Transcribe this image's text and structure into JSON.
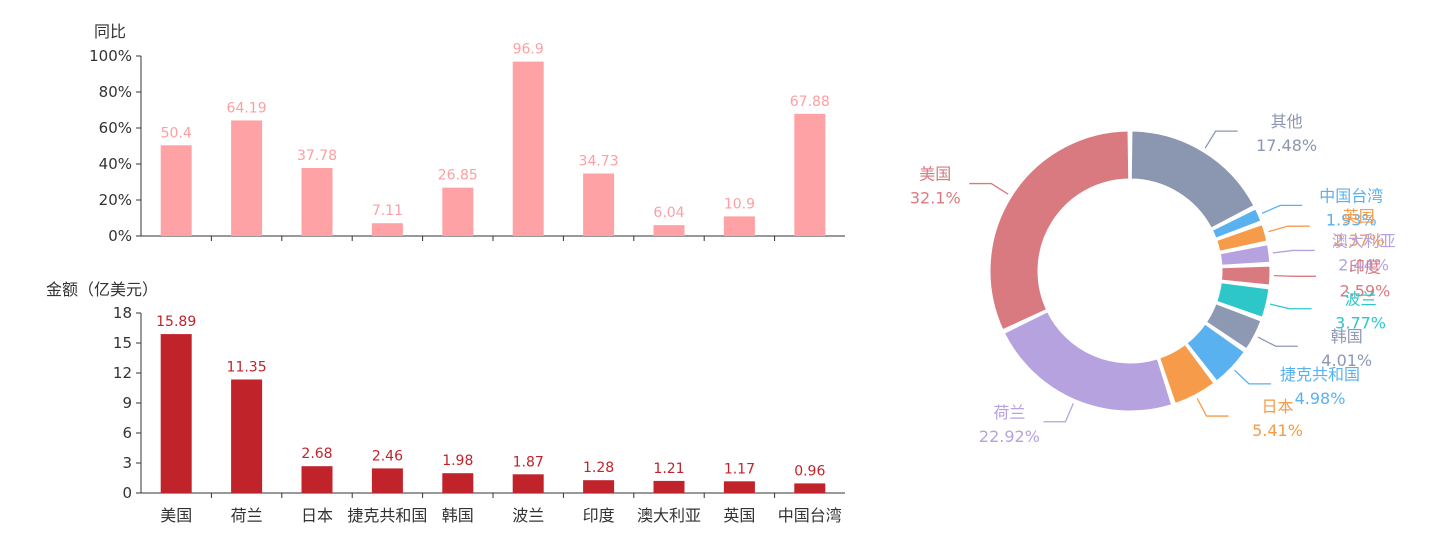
{
  "chart_data": [
    {
      "type": "bar",
      "ylabel": "同比",
      "ylim": [
        0,
        100
      ],
      "yticks": [
        "0%",
        "20%",
        "40%",
        "60%",
        "80%",
        "100%"
      ],
      "categories": [
        "美国",
        "荷兰",
        "日本",
        "捷克共和国",
        "韩国",
        "波兰",
        "印度",
        "澳大利亚",
        "英国",
        "中国台湾"
      ],
      "values": [
        50.4,
        64.19,
        37.78,
        7.11,
        26.85,
        96.9,
        34.73,
        6.04,
        10.9,
        67.88
      ],
      "labels": [
        "50.4",
        "64.19",
        "37.78",
        "7.11",
        "26.85",
        "96.9",
        "34.73",
        "6.04",
        "10.9",
        "67.88"
      ],
      "color": "#ffa2a6",
      "label_color": "#ff9ea2"
    },
    {
      "type": "bar",
      "ylabel": "金额（亿美元）",
      "ylim": [
        0,
        18
      ],
      "yticks": [
        "0",
        "3",
        "6",
        "9",
        "12",
        "15",
        "18"
      ],
      "categories": [
        "美国",
        "荷兰",
        "日本",
        "捷克共和国",
        "韩国",
        "波兰",
        "印度",
        "澳大利亚",
        "英国",
        "中国台湾"
      ],
      "values": [
        15.89,
        11.35,
        2.68,
        2.46,
        1.98,
        1.87,
        1.28,
        1.21,
        1.17,
        0.96
      ],
      "labels": [
        "15.89",
        "11.35",
        "2.68",
        "2.46",
        "1.98",
        "1.87",
        "1.28",
        "1.21",
        "1.17",
        "0.96"
      ],
      "color": "#c1232b",
      "label_color": "#c1232b"
    },
    {
      "type": "pie",
      "variant": "donut",
      "slices": [
        {
          "name": "其他",
          "pct": "17.48%",
          "value": 17.48,
          "color": "#8b97b0"
        },
        {
          "name": "中国台湾",
          "pct": "1.93%",
          "value": 1.93,
          "color": "#5ab1ef"
        },
        {
          "name": "英国",
          "pct": "2.37%",
          "value": 2.37,
          "color": "#f59b4a"
        },
        {
          "name": "澳大利亚",
          "pct": "2.44%",
          "value": 2.44,
          "color": "#b6a2de"
        },
        {
          "name": "印度",
          "pct": "2.59%",
          "value": 2.59,
          "color": "#d87a80"
        },
        {
          "name": "波兰",
          "pct": "3.77%",
          "value": 3.77,
          "color": "#2ec7c9"
        },
        {
          "name": "韩国",
          "pct": "4.01%",
          "value": 4.01,
          "color": "#8d98b3"
        },
        {
          "name": "捷克共和国",
          "pct": "4.98%",
          "value": 4.98,
          "color": "#5ab1ef"
        },
        {
          "name": "日本",
          "pct": "5.41%",
          "value": 5.41,
          "color": "#f59b4a"
        },
        {
          "name": "荷兰",
          "pct": "22.92%",
          "value": 22.92,
          "color": "#b6a2de"
        },
        {
          "name": "美国",
          "pct": "32.1%",
          "value": 32.1,
          "color": "#d87a80"
        }
      ]
    }
  ]
}
